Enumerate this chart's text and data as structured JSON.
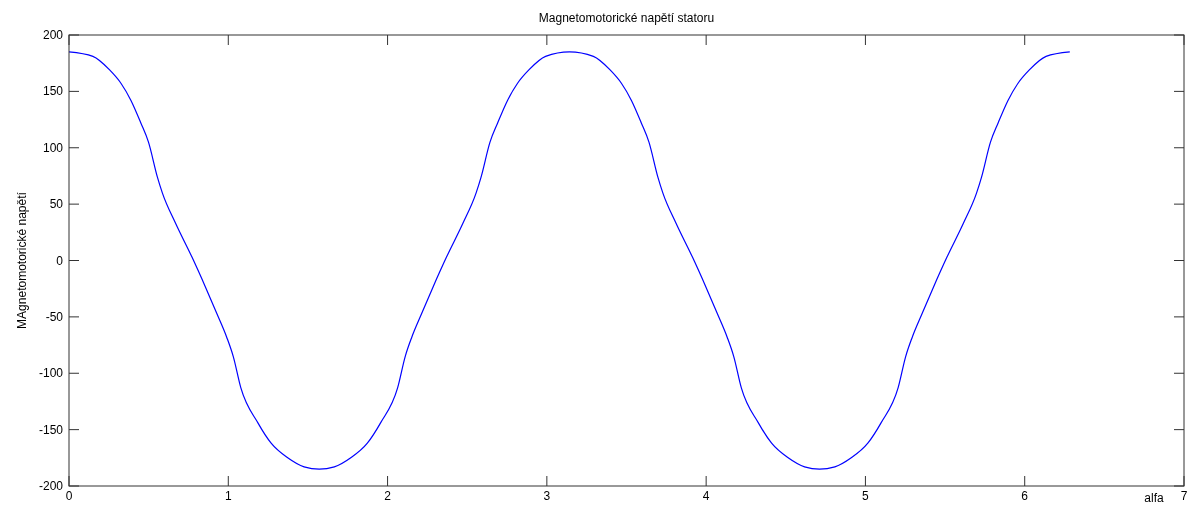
{
  "chart_data": {
    "type": "line",
    "title": "Magnetomotorické napětí statoru",
    "xlabel": "alfa",
    "ylabel": "MAgnetomotorické napětí",
    "xlim": [
      0,
      7
    ],
    "xticks": [
      0,
      1,
      2,
      3,
      4,
      5,
      6,
      7
    ],
    "ylim": [
      -200,
      200
    ],
    "yticks": [
      -200,
      -150,
      -100,
      -50,
      0,
      50,
      100,
      150,
      200
    ],
    "series": [
      {
        "color": "#0000ff",
        "x": [
          0,
          0.15,
          0.255,
          0.327,
          0.389,
          0.451,
          0.499,
          0.555,
          0.586,
          0.669,
          0.772,
          0.855,
          0.928,
          0.99,
          1.031,
          1.079,
          1.186,
          1.269,
          1.373,
          1.476,
          1.571,
          1.666,
          1.769,
          1.873,
          1.956,
          2.063,
          2.111,
          2.152,
          2.214,
          2.287,
          2.37,
          2.473,
          2.556,
          2.587,
          2.643,
          2.691,
          2.753,
          2.815,
          2.887,
          2.992,
          3.142,
          3.292,
          3.397,
          3.469,
          3.531,
          3.593,
          3.641,
          3.697,
          3.728,
          3.811,
          3.914,
          3.997,
          4.07,
          4.132,
          4.173,
          4.221,
          4.328,
          4.411,
          4.515,
          4.618,
          4.712,
          4.808,
          4.911,
          5.015,
          5.098,
          5.205,
          5.253,
          5.294,
          5.356,
          5.429,
          5.512,
          5.615,
          5.698,
          5.729,
          5.785,
          5.833,
          5.895,
          5.957,
          6.029,
          6.134,
          6.283
        ],
        "values": [
          185,
          181,
          169,
          157,
          142,
          122,
          105,
          74,
          60,
          33,
          3,
          -23,
          -47,
          -68,
          -85,
          -113,
          -144,
          -162,
          -175,
          -183,
          -185,
          -183,
          -175,
          -162,
          -144,
          -113,
          -85,
          -68,
          -47,
          -23,
          3,
          33,
          60,
          74,
          105,
          122,
          142,
          157,
          169,
          181,
          185,
          181,
          169,
          157,
          142,
          122,
          105,
          74,
          60,
          33,
          3,
          -23,
          -47,
          -68,
          -85,
          -113,
          -144,
          -162,
          -175,
          -183,
          -185,
          -183,
          -175,
          -162,
          -144,
          -113,
          -85,
          -68,
          -47,
          -23,
          3,
          33,
          60,
          74,
          105,
          122,
          142,
          157,
          169,
          181,
          185
        ]
      }
    ]
  }
}
